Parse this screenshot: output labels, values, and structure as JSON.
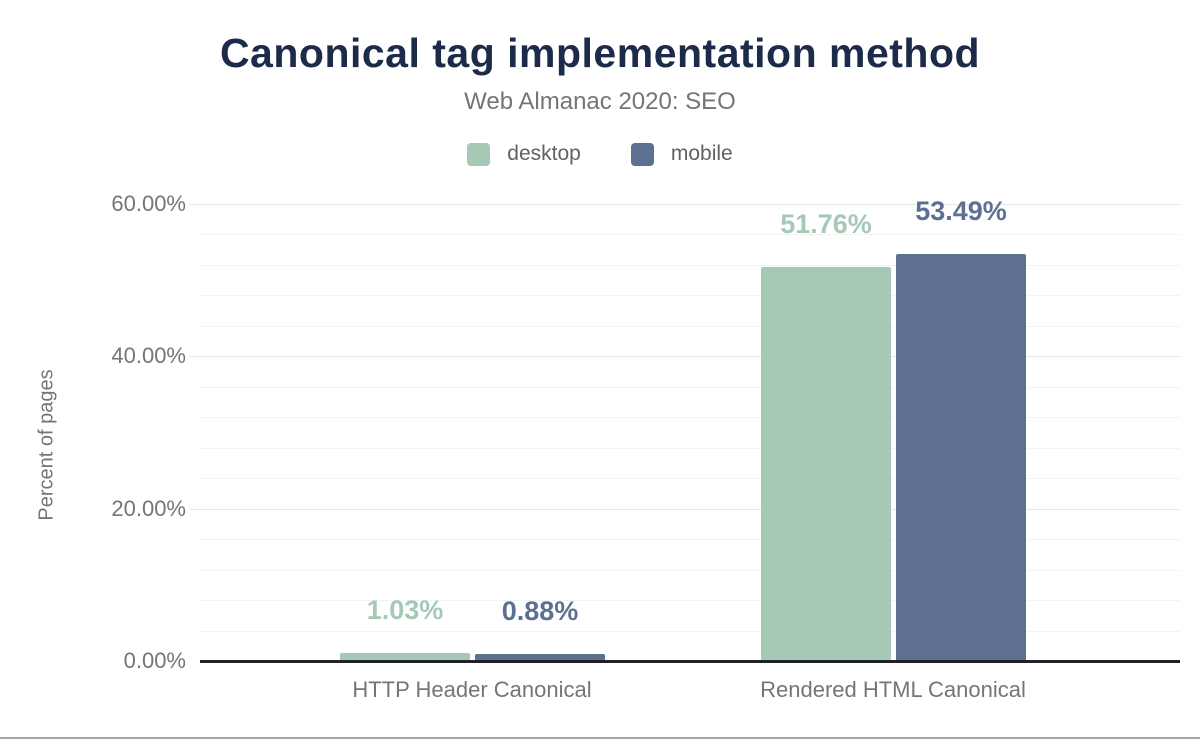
{
  "chart_data": {
    "type": "bar",
    "title": "Canonical tag implementation method",
    "subtitle": "Web Almanac 2020: SEO",
    "categories": [
      "HTTP Header Canonical",
      "Rendered HTML Canonical"
    ],
    "series": [
      {
        "name": "desktop",
        "color": "#a6c9b6",
        "values": [
          1.03,
          51.76
        ],
        "value_labels": [
          "1.03%",
          "51.76%"
        ]
      },
      {
        "name": "mobile",
        "color": "#5d7091",
        "values": [
          0.88,
          53.49
        ],
        "value_labels": [
          "0.88%",
          "53.49%"
        ]
      }
    ],
    "xlabel": "",
    "ylabel": "Percent of pages",
    "ylim": [
      0,
      60
    ],
    "yticks": [
      {
        "value": 0,
        "label": "0.00%"
      },
      {
        "value": 20,
        "label": "20.00%"
      },
      {
        "value": 40,
        "label": "40.00%"
      },
      {
        "value": 60,
        "label": "60.00%"
      }
    ],
    "minor_gridline_step": 4,
    "grid": true,
    "legend_position": "top"
  },
  "colors": {
    "title": "#1c2b4a",
    "subtitle": "#757575",
    "axis_text": "#757575",
    "legend_text": "#616161",
    "major_gridline": "#e6e6e6",
    "minor_gridline": "#f3f3f3",
    "axis_line": "#202124",
    "bottom_border": "#a5a5a5"
  }
}
